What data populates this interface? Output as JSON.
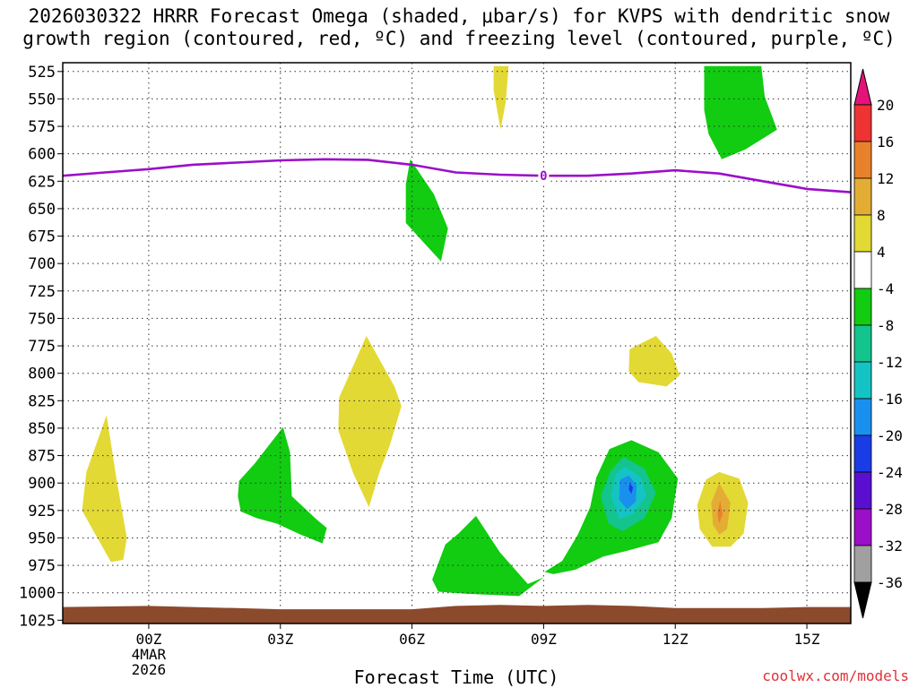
{
  "chart_data": {
    "type": "time-height contour",
    "title_line1": "2026030322 HRRR Forecast Omega (shaded, μbar/s) for KVPS with dendritic snow",
    "title_line2": "growth region (contoured, red, ºC) and freezing level (contoured, purple, ºC)",
    "xlabel": "Forecast Time (UTC)",
    "ylabel": "",
    "credit": "coolwx.com/models",
    "x_range_hours": [
      -1.96,
      16.0
    ],
    "y_range_hpa": [
      517,
      1028
    ],
    "y_ticks": [
      525,
      550,
      575,
      600,
      625,
      650,
      675,
      700,
      725,
      750,
      775,
      800,
      825,
      850,
      875,
      900,
      925,
      950,
      975,
      1000,
      1025
    ],
    "x_ticks": [
      {
        "hour": 0,
        "label": "00Z",
        "sub1": "4MAR",
        "sub2": "2026"
      },
      {
        "hour": 3,
        "label": "03Z",
        "sub1": "",
        "sub2": ""
      },
      {
        "hour": 6,
        "label": "06Z",
        "sub1": "",
        "sub2": ""
      },
      {
        "hour": 9,
        "label": "09Z",
        "sub1": "",
        "sub2": ""
      },
      {
        "hour": 12,
        "label": "12Z",
        "sub1": "",
        "sub2": ""
      },
      {
        "hour": 15,
        "label": "15Z",
        "sub1": "",
        "sub2": ""
      }
    ],
    "grid": true,
    "colorbar": {
      "position": "right",
      "tick_labels": [
        "20",
        "16",
        "12",
        "8",
        "4",
        "-4",
        "-8",
        "-12",
        "-16",
        "-20",
        "-24",
        "-28",
        "-32",
        "-36"
      ],
      "bins": [
        {
          "from": 16,
          "to": 20,
          "color": "#ee3333"
        },
        {
          "from": 12,
          "to": 16,
          "color": "#e8822a"
        },
        {
          "from": 8,
          "to": 12,
          "color": "#e3ad35"
        },
        {
          "from": 4,
          "to": 8,
          "color": "#e3d934"
        },
        {
          "from": -4,
          "to": 4,
          "color": "#ffffff"
        },
        {
          "from": -8,
          "to": -4,
          "color": "#11cc11"
        },
        {
          "from": -12,
          "to": -8,
          "color": "#13c48d"
        },
        {
          "from": -16,
          "to": -12,
          "color": "#14c4c4"
        },
        {
          "from": -20,
          "to": -16,
          "color": "#1a90ee"
        },
        {
          "from": -24,
          "to": -20,
          "color": "#1a3ce6"
        },
        {
          "from": -28,
          "to": -24,
          "color": "#5a0fd0"
        },
        {
          "from": -32,
          "to": -28,
          "color": "#9b0fc8"
        },
        {
          "from": -36,
          "to": -32,
          "color": "#a0a0a0"
        }
      ],
      "over_color": "#e3137a",
      "under_color": "#000000"
    },
    "omega_areas": [
      {
        "name": "yellow-0z-low",
        "color": "#e3d934",
        "points": [
          [
            -0.96,
            838
          ],
          [
            -0.74,
            895
          ],
          [
            -0.5,
            950
          ],
          [
            -0.58,
            970
          ],
          [
            -0.86,
            972
          ],
          [
            -1.2,
            948
          ],
          [
            -1.52,
            925
          ],
          [
            -1.42,
            890
          ]
        ]
      },
      {
        "name": "green-03z",
        "color": "#11cc11",
        "points": [
          [
            2.06,
            898
          ],
          [
            2.42,
            882
          ],
          [
            3.06,
            849
          ],
          [
            3.22,
            872
          ],
          [
            3.26,
            912
          ],
          [
            3.82,
            933
          ],
          [
            4.06,
            941
          ],
          [
            3.96,
            955
          ],
          [
            3.46,
            947
          ],
          [
            2.92,
            937
          ],
          [
            2.46,
            932
          ],
          [
            2.1,
            926
          ],
          [
            2.03,
            912
          ]
        ]
      },
      {
        "name": "yellow-05z",
        "color": "#e3d934",
        "points": [
          [
            4.96,
            766
          ],
          [
            5.6,
            812
          ],
          [
            5.76,
            830
          ],
          [
            5.5,
            865
          ],
          [
            5.26,
            890
          ],
          [
            5.02,
            922
          ],
          [
            4.66,
            891
          ],
          [
            4.32,
            852
          ],
          [
            4.34,
            822
          ],
          [
            4.52,
            806
          ]
        ]
      },
      {
        "name": "green-06z",
        "color": "#11cc11",
        "points": [
          [
            5.96,
            605
          ],
          [
            6.5,
            637
          ],
          [
            6.82,
            668
          ],
          [
            6.66,
            698
          ],
          [
            6.2,
            678
          ],
          [
            5.86,
            663
          ],
          [
            5.86,
            628
          ]
        ]
      },
      {
        "name": "yellow-08z-top",
        "color": "#e3d934",
        "points": [
          [
            7.86,
            520
          ],
          [
            8.2,
            520
          ],
          [
            8.14,
            552
          ],
          [
            8.02,
            578
          ],
          [
            7.86,
            542
          ]
        ]
      },
      {
        "name": "green-upper-right",
        "color": "#11cc11",
        "points": [
          [
            12.66,
            520
          ],
          [
            13.96,
            520
          ],
          [
            14.04,
            548
          ],
          [
            14.32,
            578
          ],
          [
            13.6,
            596
          ],
          [
            13.06,
            605
          ],
          [
            12.76,
            582
          ],
          [
            12.66,
            560
          ]
        ]
      },
      {
        "name": "yellow-11z",
        "color": "#e3d934",
        "points": [
          [
            11.56,
            766
          ],
          [
            11.92,
            782
          ],
          [
            12.1,
            802
          ],
          [
            11.8,
            812
          ],
          [
            11.16,
            808
          ],
          [
            10.94,
            798
          ],
          [
            10.96,
            778
          ]
        ]
      },
      {
        "name": "green-07z-low",
        "color": "#11cc11",
        "points": [
          [
            7.46,
            930
          ],
          [
            8.0,
            963
          ],
          [
            8.64,
            992
          ],
          [
            9.0,
            986
          ],
          [
            8.44,
            1003
          ],
          [
            7.26,
            1001
          ],
          [
            6.6,
            999
          ],
          [
            6.46,
            988
          ],
          [
            6.76,
            956
          ],
          [
            7.06,
            946
          ]
        ]
      },
      {
        "name": "green-11z-low",
        "color": "#11cc11",
        "points": [
          [
            11.0,
            861
          ],
          [
            11.62,
            872
          ],
          [
            12.06,
            896
          ],
          [
            11.92,
            932
          ],
          [
            11.62,
            954
          ],
          [
            10.88,
            962
          ],
          [
            10.36,
            967
          ],
          [
            9.72,
            979
          ],
          [
            9.22,
            983
          ],
          [
            9.02,
            981
          ],
          [
            9.42,
            971
          ],
          [
            9.78,
            947
          ],
          [
            10.06,
            922
          ],
          [
            10.2,
            895
          ],
          [
            10.5,
            869
          ]
        ]
      },
      {
        "name": "teal-11z",
        "color": "#13c48d",
        "points": [
          [
            10.82,
            876
          ],
          [
            11.3,
            887
          ],
          [
            11.56,
            909
          ],
          [
            11.3,
            932
          ],
          [
            10.8,
            944
          ],
          [
            10.48,
            937
          ],
          [
            10.3,
            912
          ],
          [
            10.52,
            889
          ]
        ]
      },
      {
        "name": "cyan-11z",
        "color": "#14c4c4",
        "points": [
          [
            10.86,
            885
          ],
          [
            11.22,
            895
          ],
          [
            11.34,
            912
          ],
          [
            11.04,
            928
          ],
          [
            10.72,
            933
          ],
          [
            10.54,
            912
          ],
          [
            10.64,
            892
          ]
        ]
      },
      {
        "name": "lightblue-11z",
        "color": "#1a90ee",
        "points": [
          [
            10.94,
            893
          ],
          [
            11.12,
            902
          ],
          [
            11.1,
            917
          ],
          [
            10.9,
            924
          ],
          [
            10.72,
            915
          ],
          [
            10.74,
            897
          ]
        ]
      },
      {
        "name": "blue-11z-core",
        "color": "#1a3ce6",
        "points": [
          [
            10.96,
            900
          ],
          [
            11.04,
            904
          ],
          [
            11.0,
            910
          ],
          [
            10.94,
            906
          ]
        ]
      },
      {
        "name": "yellow-13z",
        "color": "#e3d934",
        "points": [
          [
            13.0,
            890
          ],
          [
            13.46,
            896
          ],
          [
            13.66,
            918
          ],
          [
            13.56,
            946
          ],
          [
            13.26,
            958
          ],
          [
            12.84,
            958
          ],
          [
            12.56,
            942
          ],
          [
            12.5,
            920
          ],
          [
            12.7,
            897
          ]
        ]
      },
      {
        "name": "gold-13z",
        "color": "#e3ad35",
        "points": [
          [
            13.0,
            900
          ],
          [
            13.26,
            918
          ],
          [
            13.18,
            942
          ],
          [
            13.0,
            947
          ],
          [
            12.86,
            938
          ],
          [
            12.82,
            918
          ]
        ]
      },
      {
        "name": "orange-13z",
        "color": "#e8822a",
        "points": [
          [
            13.02,
            916
          ],
          [
            13.08,
            928
          ],
          [
            13.0,
            937
          ],
          [
            12.96,
            928
          ]
        ]
      }
    ],
    "freezing_level": {
      "label": "0",
      "label_hour": 9.0,
      "points": [
        [
          -1.96,
          620
        ],
        [
          -1.0,
          617
        ],
        [
          0.0,
          614
        ],
        [
          1.0,
          610
        ],
        [
          2.0,
          608
        ],
        [
          3.0,
          606
        ],
        [
          4.0,
          605
        ],
        [
          5.0,
          605.5
        ],
        [
          6.0,
          610
        ],
        [
          7.0,
          617
        ],
        [
          8.0,
          619
        ],
        [
          9.0,
          620
        ],
        [
          10.0,
          620
        ],
        [
          11.0,
          618
        ],
        [
          12.0,
          615
        ],
        [
          13.0,
          618
        ],
        [
          14.0,
          625
        ],
        [
          15.0,
          632
        ],
        [
          16.0,
          635
        ]
      ]
    },
    "terrain": {
      "color": "#8b4a2b",
      "points": [
        [
          -1.96,
          1013
        ],
        [
          0.0,
          1012
        ],
        [
          1.0,
          1013
        ],
        [
          2.0,
          1014
        ],
        [
          3.0,
          1015
        ],
        [
          4.0,
          1015
        ],
        [
          5.0,
          1015
        ],
        [
          6.0,
          1015
        ],
        [
          7.0,
          1012
        ],
        [
          8.0,
          1011
        ],
        [
          9.0,
          1012
        ],
        [
          10.0,
          1011
        ],
        [
          11.0,
          1012
        ],
        [
          12.0,
          1014
        ],
        [
          13.0,
          1014
        ],
        [
          14.0,
          1014
        ],
        [
          15.0,
          1013
        ],
        [
          16.0,
          1013
        ]
      ]
    }
  }
}
